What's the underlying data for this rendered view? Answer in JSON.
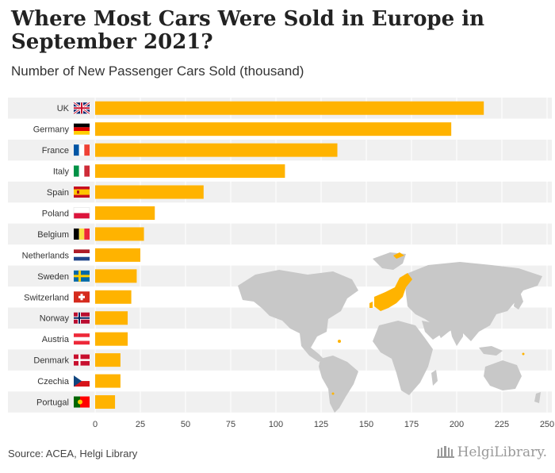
{
  "header": {
    "title": "Where Most Cars Were Sold in Europe in September 2021?",
    "subtitle": "Number of New Passenger Cars Sold (thousand)"
  },
  "footer": {
    "source": "Source: ACEA, Helgi Library",
    "brand": "HelgiLibrary."
  },
  "colors": {
    "bar": "#ffb300",
    "stripe": "#f0f0f0",
    "map": "#c8c8c8",
    "map_highlight": "#ffb300"
  },
  "chart_data": {
    "type": "bar",
    "orientation": "horizontal",
    "title": "Where Most Cars Were Sold in Europe in September 2021?",
    "subtitle": "Number of New Passenger Cars Sold (thousand)",
    "categories": [
      "UK",
      "Germany",
      "France",
      "Italy",
      "Spain",
      "Poland",
      "Belgium",
      "Netherlands",
      "Sweden",
      "Switzerland",
      "Norway",
      "Austria",
      "Denmark",
      "Czechia",
      "Portugal"
    ],
    "values": [
      215,
      197,
      134,
      105,
      60,
      33,
      27,
      25,
      23,
      20,
      18,
      18,
      14,
      14,
      11
    ],
    "flags": [
      "flag-uk-icon",
      "flag-germany-icon",
      "flag-france-icon",
      "flag-italy-icon",
      "flag-spain-icon",
      "flag-poland-icon",
      "flag-belgium-icon",
      "flag-netherlands-icon",
      "flag-sweden-icon",
      "flag-switzerland-icon",
      "flag-norway-icon",
      "flag-austria-icon",
      "flag-denmark-icon",
      "flag-czechia-icon",
      "flag-portugal-icon"
    ],
    "xlim": [
      0,
      250
    ],
    "xticks": [
      "0",
      "25",
      "50",
      "75",
      "100",
      "125",
      "150",
      "175",
      "200",
      "225",
      "250"
    ],
    "grid": true,
    "xlabel": "",
    "ylabel": ""
  }
}
